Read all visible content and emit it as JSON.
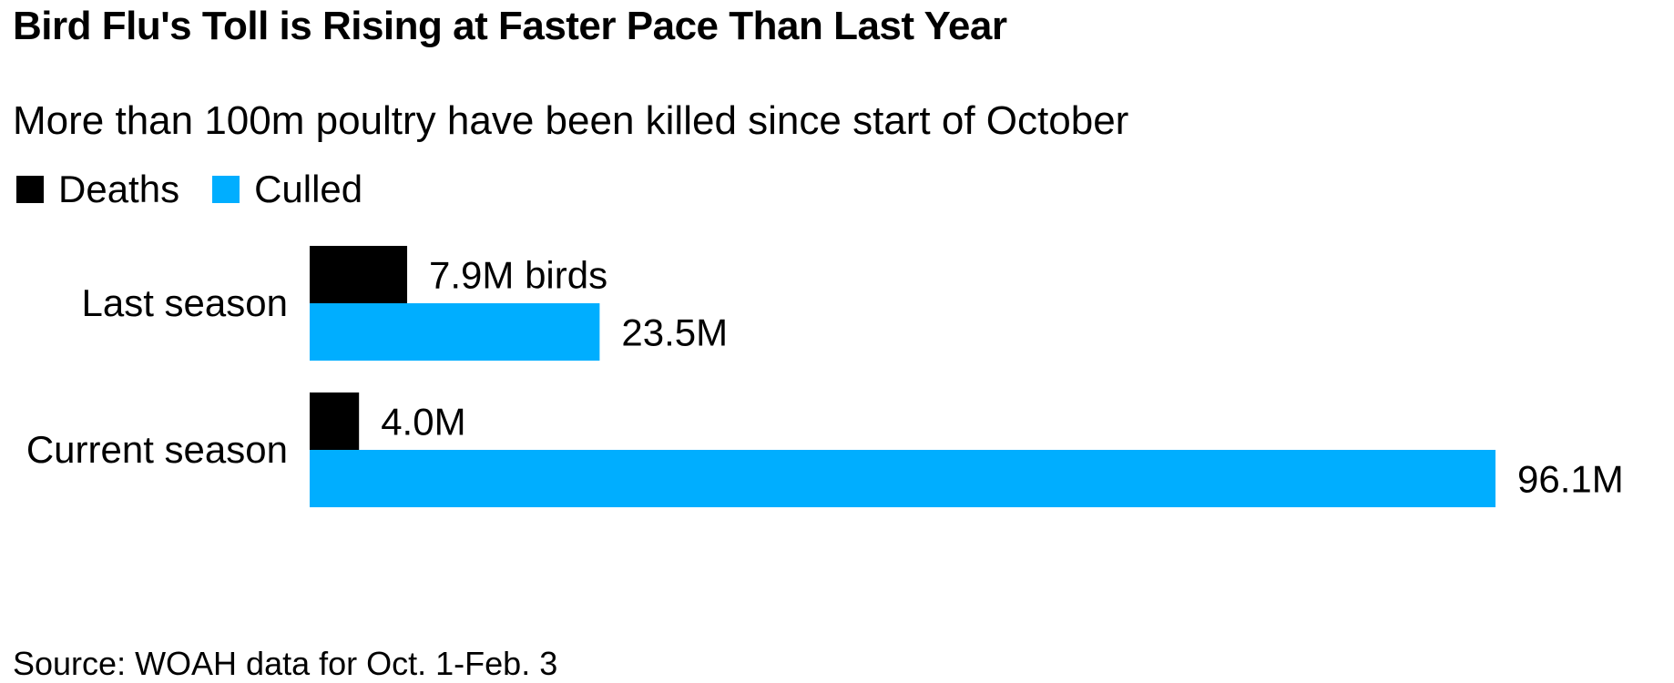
{
  "title": "Bird Flu's Toll is Rising at Faster Pace Than Last Year",
  "subtitle": "More than 100m poultry have been killed since start of October",
  "source": "Source: WOAH data for Oct. 1-Feb. 3",
  "colors": {
    "deaths": "#000000",
    "culled": "#00aeff"
  },
  "chart_data": {
    "type": "bar",
    "orientation": "horizontal",
    "grouped": true,
    "title": "Bird Flu's Toll is Rising at Faster Pace Than Last Year",
    "subtitle": "More than 100m poultry have been killed since start of October",
    "categories": [
      "Last season",
      "Current season"
    ],
    "series": [
      {
        "name": "Deaths",
        "values": [
          7.9,
          4.0
        ],
        "labels": [
          "7.9M birds",
          "4.0M"
        ]
      },
      {
        "name": "Culled",
        "values": [
          23.5,
          96.1
        ],
        "labels": [
          "23.5M",
          "96.1M"
        ]
      }
    ],
    "unit": "M birds",
    "xlim": [
      0,
      96.1
    ],
    "grid": false,
    "legend": "top-left",
    "xlabel": "",
    "ylabel": ""
  }
}
